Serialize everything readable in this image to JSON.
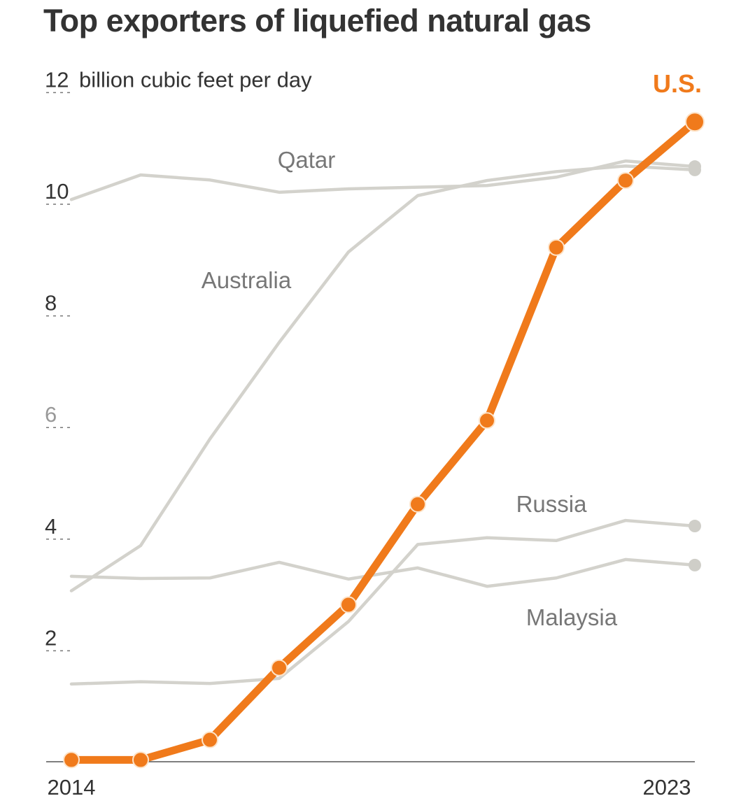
{
  "chart_data": {
    "type": "line",
    "title": "Top exporters of liquefied natural gas",
    "ylabel": "billion cubic feet per day",
    "xlabel": "",
    "ylim": [
      0,
      12
    ],
    "yticks": [
      2,
      4,
      6,
      8,
      10,
      12
    ],
    "ytick_labels": [
      "2",
      "4",
      "6",
      "8",
      "10",
      "12"
    ],
    "xlim": [
      2014,
      2023
    ],
    "xtick_labels": [
      "2014",
      "2023"
    ],
    "x": [
      2014,
      2015,
      2016,
      2017,
      2018,
      2019,
      2020,
      2021,
      2022,
      2023
    ],
    "grid": false,
    "series": [
      {
        "name": "Qatar",
        "color": "#d3d2cc",
        "highlight": false,
        "values": [
          10.06,
          10.5,
          10.41,
          10.19,
          10.25,
          10.28,
          10.31,
          10.46,
          10.75,
          10.65
        ]
      },
      {
        "name": "Australia",
        "color": "#d3d2cc",
        "highlight": false,
        "values": [
          3.05,
          3.86,
          5.77,
          7.5,
          9.12,
          10.13,
          10.4,
          10.56,
          10.66,
          10.59
        ]
      },
      {
        "name": "Russia",
        "color": "#d3d2cc",
        "highlight": false,
        "values": [
          1.38,
          1.42,
          1.39,
          1.48,
          2.5,
          3.88,
          4.0,
          3.95,
          4.31,
          4.21
        ]
      },
      {
        "name": "Malaysia",
        "color": "#d3d2cc",
        "highlight": false,
        "values": [
          3.31,
          3.27,
          3.28,
          3.56,
          3.26,
          3.46,
          3.13,
          3.28,
          3.61,
          3.51
        ]
      },
      {
        "name": "U.S.",
        "color": "#f07a1b",
        "highlight": true,
        "values": [
          0.02,
          0.02,
          0.38,
          1.67,
          2.8,
          4.6,
          6.1,
          9.2,
          10.4,
          11.45
        ]
      }
    ]
  }
}
